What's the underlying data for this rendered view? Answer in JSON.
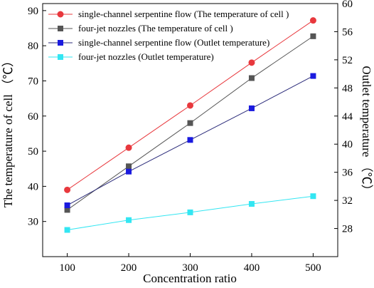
{
  "chart_data": {
    "type": "line",
    "x_axis": {
      "label": "Concentration ratio",
      "range": [
        60,
        540
      ],
      "ticks": [
        100,
        200,
        300,
        400,
        500
      ],
      "tick_labels": [
        "100",
        "200",
        "300",
        "400",
        "500"
      ]
    },
    "y_left": {
      "label": "The temperature of cell  （℃）",
      "range": [
        20,
        92
      ],
      "ticks": [
        30,
        40,
        50,
        60,
        70,
        80,
        90
      ],
      "tick_labels": [
        "30",
        "40",
        "50",
        "60",
        "70",
        "80",
        "90"
      ]
    },
    "y_right": {
      "label": "Outlet temperature  （℃）",
      "range": [
        24,
        60
      ],
      "ticks": [
        28,
        32,
        36,
        40,
        44,
        48,
        52,
        56,
        60
      ],
      "tick_labels": [
        "28",
        "32",
        "36",
        "40",
        "44",
        "48",
        "52",
        "56",
        "60"
      ]
    },
    "x": [
      100,
      200,
      300,
      400,
      500
    ],
    "series": [
      {
        "name": "single-channel serpentine flow (The temperature of cell )",
        "axis": "left",
        "marker": "circle",
        "color": "#e8383d",
        "line_color": "#e8383d",
        "values": [
          39,
          51,
          63,
          75.2,
          87.2
        ]
      },
      {
        "name": "four-jet nozzles (The temperature of cell )",
        "axis": "left",
        "marker": "square",
        "color": "#555555",
        "line_color": "#555555",
        "values": [
          33.3,
          45.7,
          58,
          70.8,
          82.7
        ]
      },
      {
        "name": "single-channel serpentine flow (Outlet temperature)",
        "axis": "right",
        "marker": "square",
        "color": "#1a1adf",
        "line_color": "#2b2b7a",
        "values": [
          31.3,
          36.1,
          40.6,
          45.1,
          49.7
        ]
      },
      {
        "name": "four-jet nozzles (Outlet temperature)",
        "axis": "right",
        "marker": "square",
        "color": "#33e6f2",
        "line_color": "#33e6f2",
        "values": [
          27.8,
          29.2,
          30.3,
          31.5,
          32.6
        ]
      }
    ],
    "legend_position": "top-left",
    "grid": false
  }
}
